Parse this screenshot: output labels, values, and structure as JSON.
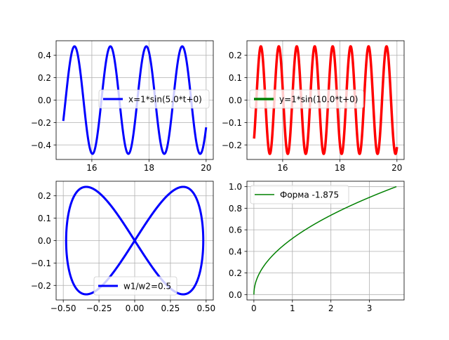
{
  "chart_data": [
    {
      "type": "line",
      "title": "",
      "xlabel": "",
      "ylabel": "",
      "xlim": [
        14.75,
        20.25
      ],
      "ylim": [
        -0.53,
        0.53
      ],
      "xticks": [
        16,
        18,
        20
      ],
      "yticks": [
        -0.4,
        -0.2,
        0.0,
        0.2,
        0.4
      ],
      "xtick_labels": [
        "16",
        "18",
        "20"
      ],
      "ytick_labels": [
        "−0.4",
        "−0.2",
        "0.0",
        "0.2",
        "0.4"
      ],
      "grid": true,
      "legend_loc": "center-right",
      "series": [
        {
          "name": "x=1*sin(5.0*t+0)",
          "color": "#0000ff",
          "linewidth": 3,
          "function": "0.48*sin(5*t+0)",
          "t_range": [
            15,
            20
          ]
        }
      ]
    },
    {
      "type": "line",
      "title": "",
      "xlabel": "",
      "ylabel": "",
      "xlim": [
        14.75,
        20.25
      ],
      "ylim": [
        -0.265,
        0.265
      ],
      "xticks": [
        16,
        18,
        20
      ],
      "yticks": [
        -0.2,
        -0.1,
        0.0,
        0.1,
        0.2
      ],
      "xtick_labels": [
        "16",
        "18",
        "20"
      ],
      "ytick_labels": [
        "−0.2",
        "−0.1",
        "0.0",
        "0.1",
        "0.2"
      ],
      "grid": true,
      "legend_loc": "center",
      "legend_line_color": "#008000",
      "series": [
        {
          "name": "y=1*sin(10.0*t+0)",
          "color": "#ff0000",
          "linewidth": 3.5,
          "function": "0.24*sin(10*t+0)",
          "t_range": [
            15,
            20
          ]
        }
      ]
    },
    {
      "type": "line",
      "title": "",
      "xlabel": "",
      "ylabel": "",
      "xlim": [
        -0.55,
        0.55
      ],
      "ylim": [
        -0.265,
        0.265
      ],
      "xticks": [
        -0.5,
        -0.25,
        0.0,
        0.25,
        0.5
      ],
      "yticks": [
        -0.2,
        -0.1,
        0.0,
        0.1,
        0.2
      ],
      "xtick_labels": [
        "−0.50",
        "−0.25",
        "0.00",
        "0.25",
        "0.50"
      ],
      "ytick_labels": [
        "−0.2",
        "−0.1",
        "0.0",
        "0.1",
        "0.2"
      ],
      "grid": true,
      "legend_loc": "lower-center",
      "series": [
        {
          "name": "w1/w2=0.5",
          "color": "#0000ff",
          "linewidth": 3,
          "x_function": "0.48*sin(5*t)",
          "y_function": "0.24*sin(10*t)",
          "t_range": [
            15,
            20
          ]
        }
      ]
    },
    {
      "type": "line",
      "title": "",
      "xlabel": "",
      "ylabel": "",
      "xlim": [
        -0.18,
        3.9
      ],
      "ylim": [
        -0.05,
        1.05
      ],
      "xticks": [
        0,
        1,
        2,
        3
      ],
      "yticks": [
        0.0,
        0.2,
        0.4,
        0.6,
        0.8,
        1.0
      ],
      "xtick_labels": [
        "0",
        "1",
        "2",
        "3"
      ],
      "ytick_labels": [
        "0.0",
        "0.2",
        "0.4",
        "0.6",
        "0.8",
        "1.0"
      ],
      "grid": true,
      "legend_loc": "upper-left",
      "series": [
        {
          "name": "Форма  -1.875",
          "color": "#008000",
          "linewidth": 1.5,
          "function": "sqrt(x/3.7)",
          "x_range": [
            0,
            3.7
          ]
        }
      ]
    }
  ]
}
